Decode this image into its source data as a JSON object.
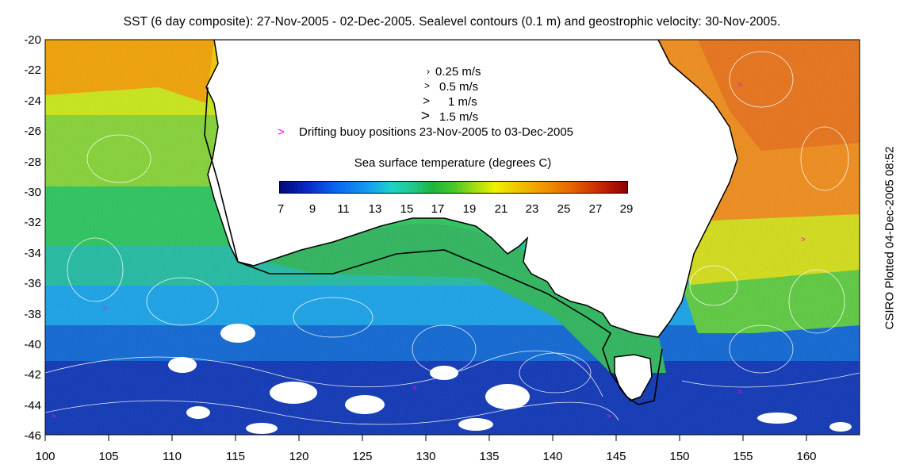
{
  "title": "SST (6 day composite): 27-Nov-2005 - 02-Dec-2005. Sealevel contours (0.1 m) and geostrophic velocity: 30-Nov-2005.",
  "side_label": "CSIRO Plotted 04-Dec-2005 08:52",
  "map": {
    "lon_min": 100,
    "lon_max": 164,
    "lat_min": -46,
    "lat_max": -20,
    "y_ticks": [
      "-20",
      "-22",
      "-24",
      "-26",
      "-28",
      "-30",
      "-32",
      "-34",
      "-36",
      "-38",
      "-40",
      "-42",
      "-44",
      "-46"
    ],
    "x_ticks": [
      "100",
      "105",
      "110",
      "115",
      "120",
      "125",
      "130",
      "135",
      "140",
      "145",
      "150",
      "155",
      "160"
    ]
  },
  "legend": {
    "speeds": [
      {
        "label": "0.25 m/s"
      },
      {
        "label": "0.5 m/s"
      },
      {
        "label": "1 m/s"
      },
      {
        "label": "1.5 m/s"
      }
    ],
    "buoy_marker": ">",
    "buoy_label": "Drifting buoy positions 23-Nov-2005 to 03-Dec-2005",
    "buoy_color": "#ff00ff"
  },
  "colorbar": {
    "title": "Sea surface temperature (degrees C)",
    "min": 7,
    "max": 29,
    "ticks": [
      "7",
      "9",
      "11",
      "13",
      "15",
      "17",
      "19",
      "21",
      "23",
      "25",
      "27",
      "29"
    ]
  }
}
